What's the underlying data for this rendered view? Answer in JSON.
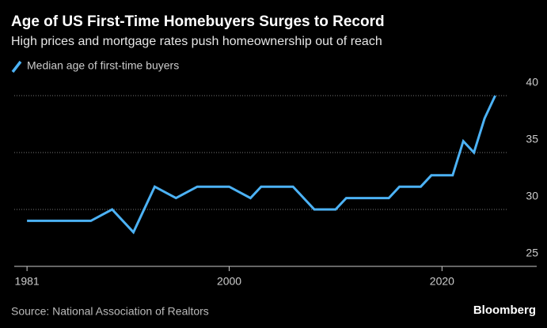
{
  "chart_data": {
    "type": "line",
    "title": "Age of US First-Time Homebuyers Surges to Record",
    "subtitle": "High prices and mortgage rates push homeownership out of reach",
    "x": [
      1981,
      1987,
      1989,
      1991,
      1993,
      1995,
      1997,
      2000,
      2002,
      2003,
      2006,
      2008,
      2010,
      2011,
      2015,
      2016,
      2018,
      2019,
      2021,
      2022,
      2023,
      2024,
      2025
    ],
    "series": [
      {
        "name": "Median age of first-time buyers",
        "color": "#4cb2f5",
        "values": [
          29,
          29,
          30,
          28,
          32,
          31,
          32,
          32,
          31,
          32,
          32,
          30,
          30,
          31,
          31,
          32,
          32,
          33,
          33,
          36,
          35,
          38,
          40
        ]
      }
    ],
    "xlim": [
      1979.8,
      2028.9
    ],
    "xticks": [
      1981,
      2000,
      2020
    ],
    "ylim": [
      25,
      41.5
    ],
    "yticks": [
      25,
      30,
      35,
      40
    ],
    "grid": true,
    "source": "Source: National Association of Realtors",
    "brand": "Bloomberg"
  }
}
